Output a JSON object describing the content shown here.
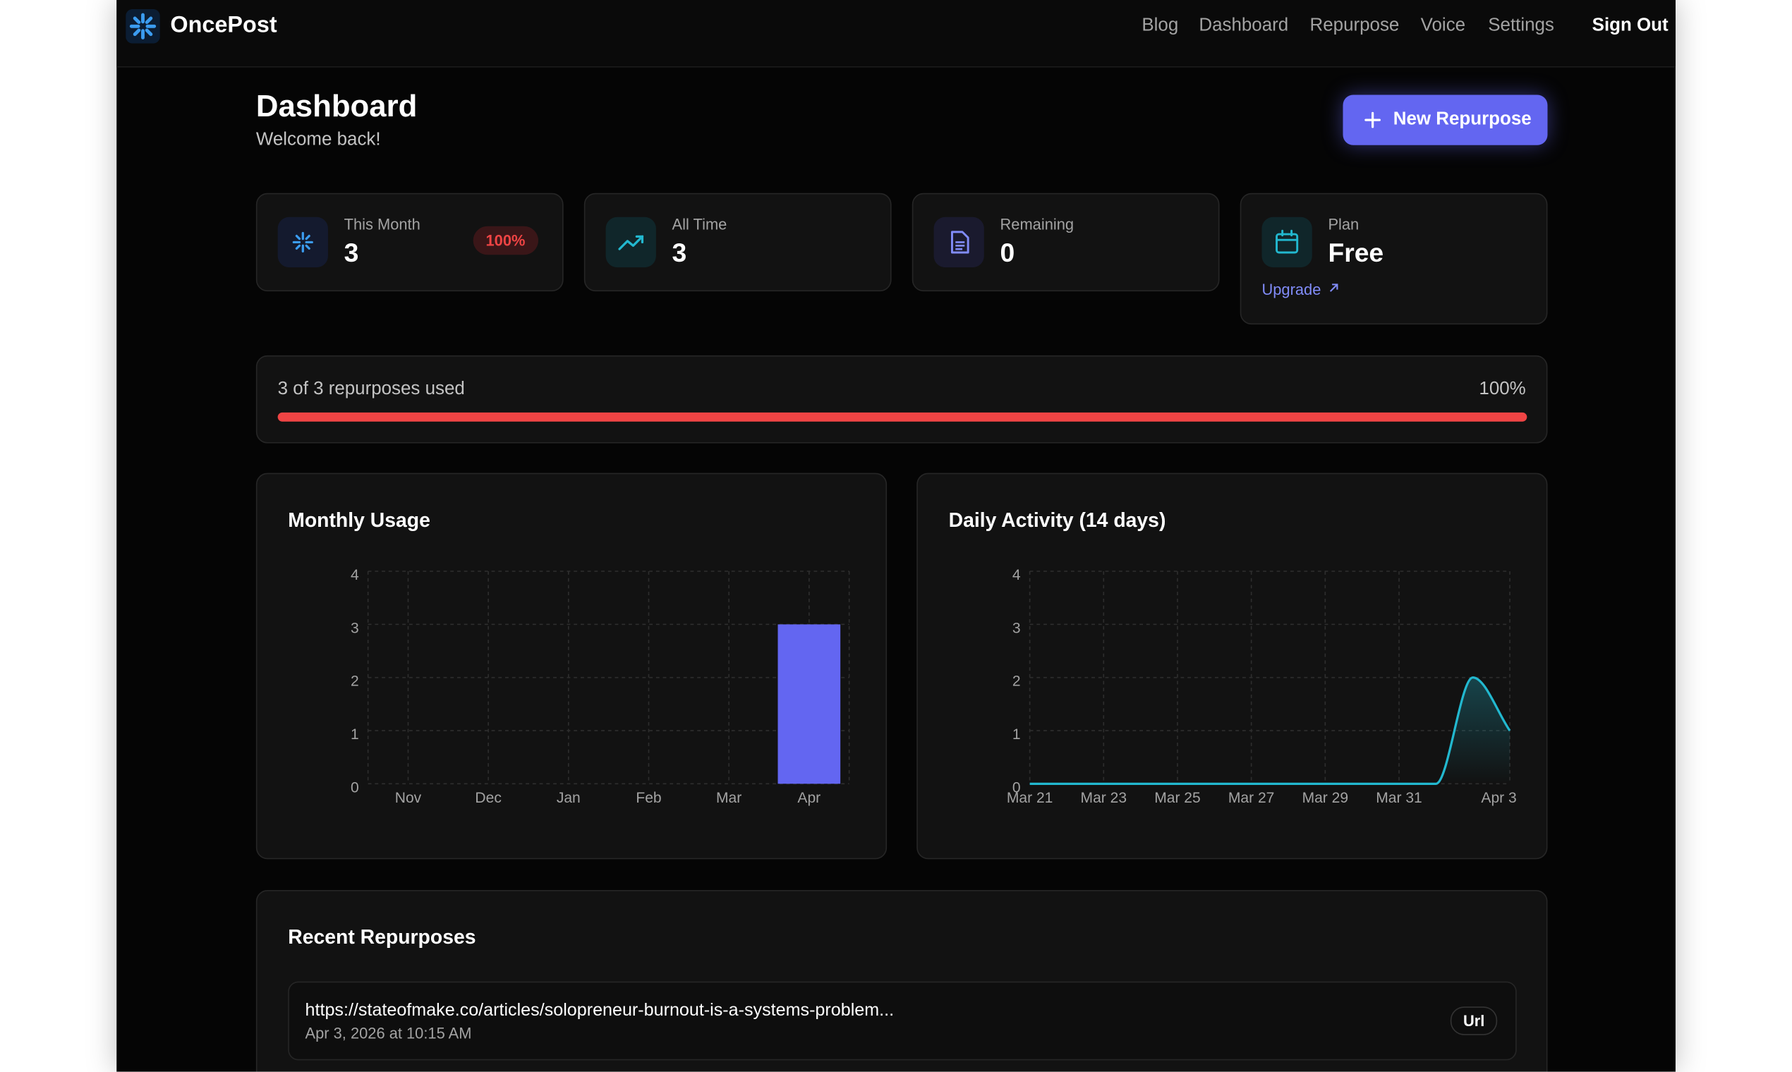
{
  "nav": {
    "brand": "OncePost",
    "links": [
      "Blog",
      "Dashboard",
      "Repurpose",
      "Voice",
      "Settings"
    ],
    "sign_out": "Sign Out"
  },
  "header": {
    "title": "Dashboard",
    "subtitle": "Welcome back!",
    "button": "New Repurpose"
  },
  "stats": [
    {
      "label": "This Month",
      "value": "3",
      "badge": "100%"
    },
    {
      "label": "All Time",
      "value": "3"
    },
    {
      "label": "Remaining",
      "value": "0"
    },
    {
      "label": "Plan",
      "value": "Free",
      "link": "Upgrade"
    }
  ],
  "usage": {
    "text": "3 of 3 repurposes used",
    "percent": 100,
    "percent_label": "100%"
  },
  "chart_data": [
    {
      "type": "bar",
      "title": "Monthly Usage",
      "categories": [
        "Nov",
        "Dec",
        "Jan",
        "Feb",
        "Mar",
        "Apr"
      ],
      "values": [
        0,
        0,
        0,
        0,
        0,
        3
      ],
      "color": "#6366f1",
      "ylim": [
        0,
        4
      ],
      "yticks": [
        0,
        1,
        2,
        3,
        4
      ],
      "grid": true
    },
    {
      "type": "line",
      "title": "Daily Activity (14 days)",
      "categories": [
        "Mar 21",
        null,
        "Mar 23",
        null,
        "Mar 25",
        null,
        "Mar 27",
        null,
        "Mar 29",
        null,
        "Mar 31",
        null,
        null,
        "Apr 3"
      ],
      "series": [
        {
          "values": [
            0,
            0,
            0,
            0,
            0,
            0,
            0,
            0,
            0,
            0,
            0,
            0,
            2,
            1
          ],
          "color": "#22b8cf"
        }
      ],
      "ylim": [
        0,
        4
      ],
      "yticks": [
        0,
        1,
        2,
        3,
        4
      ],
      "grid": true
    }
  ],
  "recent": {
    "title": "Recent Repurposes",
    "items": [
      {
        "url": "https://stateofmake.co/articles/solopreneur-burnout-is-a-systems-problem...",
        "date": "Apr 3, 2026 at 10:15 AM",
        "type": "Url"
      }
    ]
  }
}
